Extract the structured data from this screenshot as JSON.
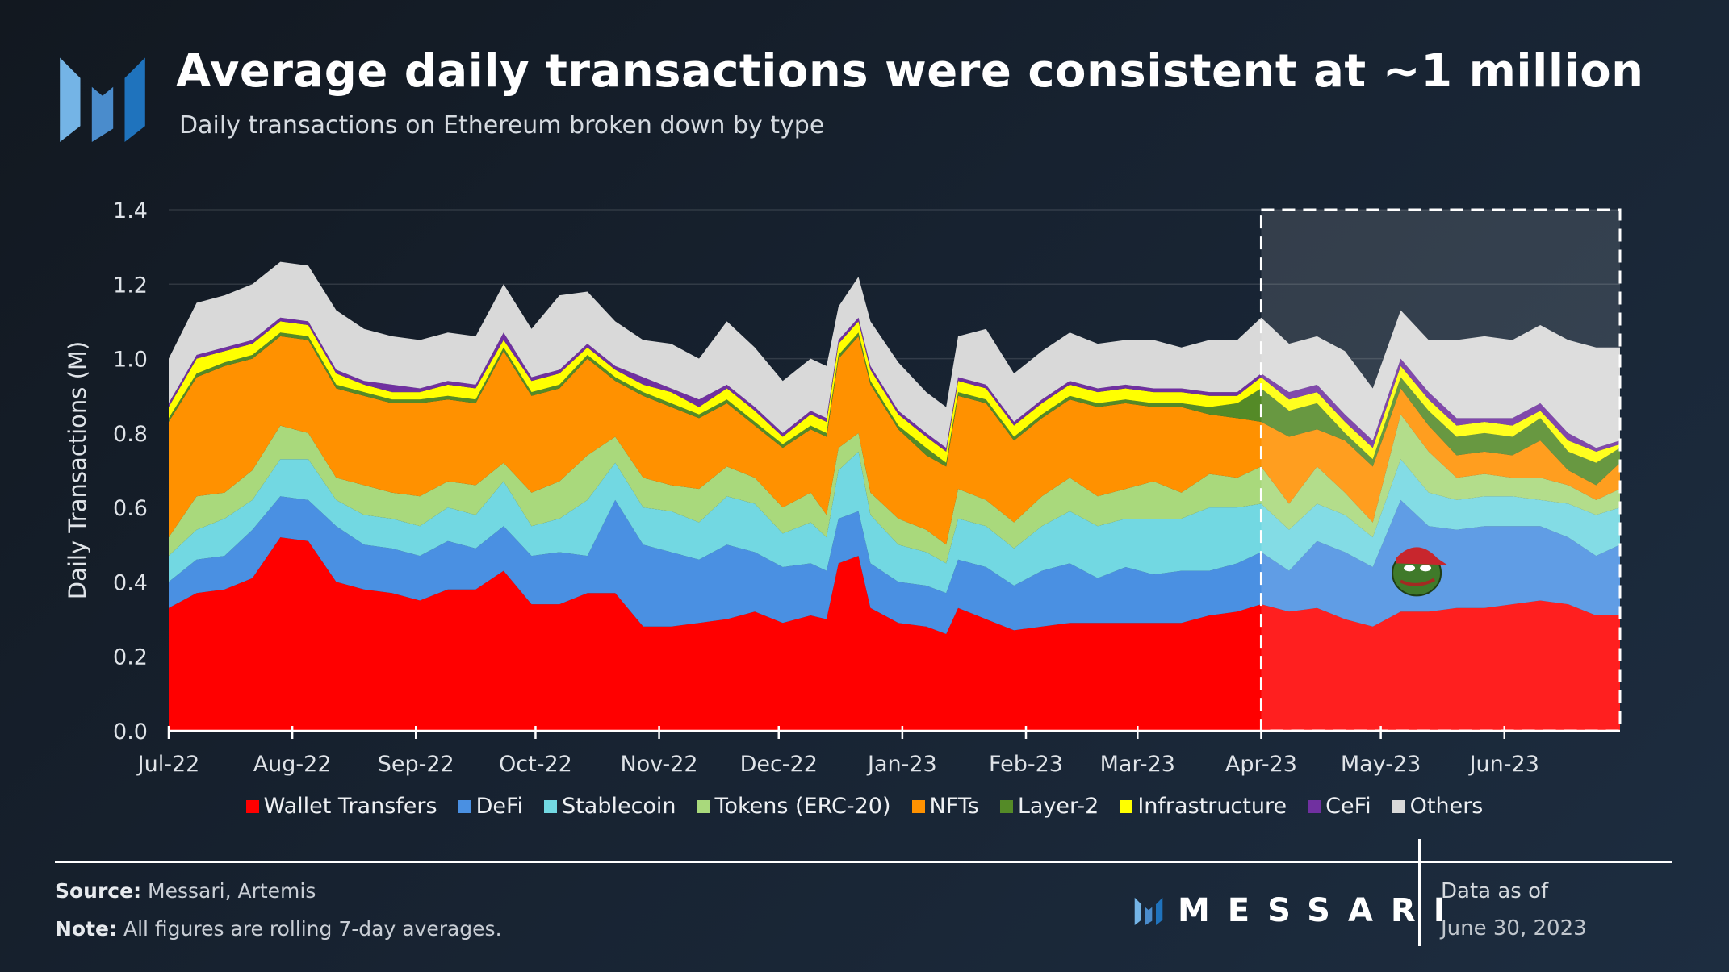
{
  "header": {
    "title": "Average daily transactions were consistent at ~1 million",
    "subtitle": "Daily transactions on Ethereum broken down by type"
  },
  "footer": {
    "source_label": "Source:",
    "source_text": " Messari, Artemis",
    "note_label": "Note:",
    "note_text": " All figures are rolling 7-day averages.",
    "brand": "MESSARI",
    "data_as_of_label": "Data as of",
    "data_as_of_date": "June 30, 2023"
  },
  "decorations": {
    "highlight_region_start": "2023-04-01",
    "highlight_region_end": "2023-06-30",
    "pepe_icon": "pepe-frog-icon"
  },
  "chart_data": {
    "type": "area",
    "stacked": true,
    "title": "Average daily transactions were consistent at ~1 million",
    "subtitle": "Daily transactions on Ethereum broken down by type",
    "xlabel": "",
    "ylabel": "Daily Transactions (M)",
    "ylim": [
      0,
      1.4
    ],
    "yticks": [
      "0.0",
      "0.2",
      "0.4",
      "0.6",
      "0.8",
      "1.0",
      "1.2",
      "1.4"
    ],
    "xlim": [
      "2022-07-01",
      "2023-06-30"
    ],
    "xticks": [
      {
        "date": "2022-07-01",
        "label": "Jul-22"
      },
      {
        "date": "2022-08-01",
        "label": "Aug-22"
      },
      {
        "date": "2022-09-01",
        "label": "Sep-22"
      },
      {
        "date": "2022-10-01",
        "label": "Oct-22"
      },
      {
        "date": "2022-11-01",
        "label": "Nov-22"
      },
      {
        "date": "2022-12-01",
        "label": "Dec-22"
      },
      {
        "date": "2023-01-01",
        "label": "Jan-23"
      },
      {
        "date": "2023-02-01",
        "label": "Feb-23"
      },
      {
        "date": "2023-03-01",
        "label": "Mar-23"
      },
      {
        "date": "2023-04-01",
        "label": "Apr-23"
      },
      {
        "date": "2023-05-01",
        "label": "May-23"
      },
      {
        "date": "2023-06-01",
        "label": "Jun-23"
      }
    ],
    "grid": true,
    "legend_position": "bottom",
    "x": [
      "2022-07-01",
      "2022-07-08",
      "2022-07-15",
      "2022-07-22",
      "2022-07-29",
      "2022-08-05",
      "2022-08-12",
      "2022-08-19",
      "2022-08-26",
      "2022-09-02",
      "2022-09-09",
      "2022-09-16",
      "2022-09-23",
      "2022-09-30",
      "2022-10-07",
      "2022-10-14",
      "2022-10-21",
      "2022-10-28",
      "2022-11-04",
      "2022-11-11",
      "2022-11-18",
      "2022-11-25",
      "2022-12-02",
      "2022-12-09",
      "2022-12-13",
      "2022-12-16",
      "2022-12-21",
      "2022-12-24",
      "2022-12-31",
      "2023-01-07",
      "2023-01-12",
      "2023-01-15",
      "2023-01-22",
      "2023-01-29",
      "2023-02-05",
      "2023-02-12",
      "2023-02-19",
      "2023-02-26",
      "2023-03-05",
      "2023-03-12",
      "2023-03-19",
      "2023-03-26",
      "2023-04-01",
      "2023-04-08",
      "2023-04-15",
      "2023-04-22",
      "2023-04-29",
      "2023-05-06",
      "2023-05-13",
      "2023-05-20",
      "2023-05-27",
      "2023-06-03",
      "2023-06-10",
      "2023-06-17",
      "2023-06-24",
      "2023-06-30"
    ],
    "series": [
      {
        "name": "Wallet Transfers",
        "color": "#ff0000",
        "values": [
          0.33,
          0.37,
          0.38,
          0.41,
          0.52,
          0.51,
          0.4,
          0.38,
          0.37,
          0.35,
          0.38,
          0.38,
          0.43,
          0.34,
          0.34,
          0.37,
          0.37,
          0.28,
          0.28,
          0.29,
          0.3,
          0.32,
          0.29,
          0.31,
          0.3,
          0.45,
          0.47,
          0.33,
          0.29,
          0.28,
          0.26,
          0.33,
          0.3,
          0.27,
          0.28,
          0.29,
          0.29,
          0.29,
          0.29,
          0.29,
          0.31,
          0.32,
          0.34,
          0.32,
          0.33,
          0.3,
          0.28,
          0.32,
          0.32,
          0.33,
          0.33,
          0.34,
          0.35,
          0.34,
          0.31,
          0.31
        ]
      },
      {
        "name": "DeFi",
        "color": "#4a90e2",
        "values": [
          0.07,
          0.09,
          0.09,
          0.13,
          0.11,
          0.11,
          0.15,
          0.12,
          0.12,
          0.12,
          0.13,
          0.11,
          0.12,
          0.13,
          0.14,
          0.1,
          0.25,
          0.22,
          0.2,
          0.17,
          0.2,
          0.16,
          0.15,
          0.14,
          0.13,
          0.12,
          0.12,
          0.12,
          0.11,
          0.11,
          0.11,
          0.13,
          0.14,
          0.12,
          0.15,
          0.16,
          0.12,
          0.15,
          0.13,
          0.14,
          0.12,
          0.13,
          0.14,
          0.11,
          0.18,
          0.18,
          0.16,
          0.3,
          0.23,
          0.21,
          0.22,
          0.21,
          0.2,
          0.18,
          0.16,
          0.19
        ]
      },
      {
        "name": "Stablecoin",
        "color": "#72d8e2",
        "values": [
          0.07,
          0.08,
          0.1,
          0.08,
          0.1,
          0.11,
          0.07,
          0.08,
          0.08,
          0.08,
          0.09,
          0.09,
          0.12,
          0.08,
          0.09,
          0.15,
          0.1,
          0.1,
          0.11,
          0.1,
          0.13,
          0.13,
          0.09,
          0.11,
          0.09,
          0.13,
          0.16,
          0.13,
          0.1,
          0.09,
          0.08,
          0.11,
          0.11,
          0.1,
          0.12,
          0.14,
          0.14,
          0.13,
          0.15,
          0.14,
          0.17,
          0.15,
          0.13,
          0.11,
          0.1,
          0.1,
          0.08,
          0.11,
          0.09,
          0.08,
          0.08,
          0.08,
          0.07,
          0.09,
          0.11,
          0.1
        ]
      },
      {
        "name": "Tokens (ERC-20)",
        "color": "#a9d97c",
        "values": [
          0.05,
          0.09,
          0.07,
          0.08,
          0.09,
          0.07,
          0.06,
          0.08,
          0.07,
          0.08,
          0.07,
          0.08,
          0.05,
          0.09,
          0.1,
          0.12,
          0.07,
          0.08,
          0.07,
          0.09,
          0.08,
          0.07,
          0.07,
          0.08,
          0.06,
          0.06,
          0.05,
          0.06,
          0.07,
          0.06,
          0.05,
          0.08,
          0.07,
          0.07,
          0.08,
          0.09,
          0.08,
          0.08,
          0.1,
          0.07,
          0.09,
          0.08,
          0.1,
          0.07,
          0.1,
          0.06,
          0.04,
          0.12,
          0.11,
          0.06,
          0.06,
          0.05,
          0.06,
          0.05,
          0.04,
          0.05
        ]
      },
      {
        "name": "NFTs",
        "color": "#ff9100",
        "values": [
          0.31,
          0.32,
          0.34,
          0.3,
          0.24,
          0.25,
          0.24,
          0.24,
          0.24,
          0.25,
          0.22,
          0.22,
          0.3,
          0.26,
          0.25,
          0.26,
          0.15,
          0.22,
          0.21,
          0.19,
          0.17,
          0.14,
          0.16,
          0.17,
          0.21,
          0.24,
          0.26,
          0.29,
          0.24,
          0.2,
          0.21,
          0.25,
          0.26,
          0.22,
          0.21,
          0.21,
          0.24,
          0.23,
          0.2,
          0.23,
          0.16,
          0.16,
          0.12,
          0.18,
          0.1,
          0.14,
          0.15,
          0.07,
          0.07,
          0.06,
          0.06,
          0.06,
          0.1,
          0.04,
          0.04,
          0.07
        ]
      },
      {
        "name": "Layer-2",
        "color": "#548a27",
        "values": [
          0.01,
          0.01,
          0.01,
          0.01,
          0.01,
          0.01,
          0.01,
          0.01,
          0.01,
          0.01,
          0.01,
          0.01,
          0.01,
          0.01,
          0.01,
          0.01,
          0.01,
          0.01,
          0.01,
          0.01,
          0.01,
          0.01,
          0.01,
          0.01,
          0.01,
          0.01,
          0.01,
          0.01,
          0.01,
          0.02,
          0.01,
          0.01,
          0.01,
          0.01,
          0.01,
          0.01,
          0.01,
          0.01,
          0.01,
          0.01,
          0.02,
          0.04,
          0.09,
          0.07,
          0.07,
          0.02,
          0.02,
          0.03,
          0.04,
          0.05,
          0.05,
          0.05,
          0.06,
          0.05,
          0.06,
          0.04
        ]
      },
      {
        "name": "Infrastructure",
        "color": "#ffff00",
        "values": [
          0.03,
          0.04,
          0.03,
          0.03,
          0.03,
          0.03,
          0.03,
          0.02,
          0.02,
          0.02,
          0.03,
          0.03,
          0.02,
          0.03,
          0.03,
          0.02,
          0.02,
          0.02,
          0.03,
          0.02,
          0.03,
          0.03,
          0.02,
          0.03,
          0.03,
          0.03,
          0.03,
          0.03,
          0.03,
          0.03,
          0.03,
          0.03,
          0.03,
          0.03,
          0.03,
          0.03,
          0.03,
          0.03,
          0.03,
          0.03,
          0.03,
          0.02,
          0.03,
          0.03,
          0.03,
          0.03,
          0.03,
          0.03,
          0.03,
          0.03,
          0.03,
          0.03,
          0.02,
          0.03,
          0.03,
          0.01
        ]
      },
      {
        "name": "CeFi",
        "color": "#7030a0",
        "values": [
          0.01,
          0.01,
          0.01,
          0.01,
          0.01,
          0.01,
          0.01,
          0.01,
          0.02,
          0.01,
          0.01,
          0.01,
          0.02,
          0.01,
          0.01,
          0.01,
          0.01,
          0.02,
          0.01,
          0.02,
          0.01,
          0.01,
          0.01,
          0.01,
          0.01,
          0.01,
          0.01,
          0.01,
          0.01,
          0.01,
          0.01,
          0.01,
          0.01,
          0.01,
          0.01,
          0.01,
          0.01,
          0.01,
          0.01,
          0.01,
          0.01,
          0.01,
          0.01,
          0.02,
          0.02,
          0.02,
          0.02,
          0.02,
          0.02,
          0.02,
          0.01,
          0.02,
          0.02,
          0.02,
          0.01,
          0.01
        ]
      },
      {
        "name": "Others",
        "color": "#d9d9d9",
        "values": [
          0.12,
          0.14,
          0.14,
          0.15,
          0.15,
          0.15,
          0.16,
          0.14,
          0.13,
          0.13,
          0.13,
          0.13,
          0.13,
          0.13,
          0.2,
          0.14,
          0.12,
          0.1,
          0.12,
          0.11,
          0.17,
          0.16,
          0.14,
          0.14,
          0.14,
          0.09,
          0.11,
          0.12,
          0.13,
          0.11,
          0.11,
          0.11,
          0.15,
          0.13,
          0.13,
          0.13,
          0.12,
          0.12,
          0.13,
          0.11,
          0.14,
          0.14,
          0.15,
          0.13,
          0.13,
          0.17,
          0.14,
          0.13,
          0.14,
          0.21,
          0.22,
          0.21,
          0.21,
          0.25,
          0.27,
          0.25
        ]
      }
    ]
  }
}
